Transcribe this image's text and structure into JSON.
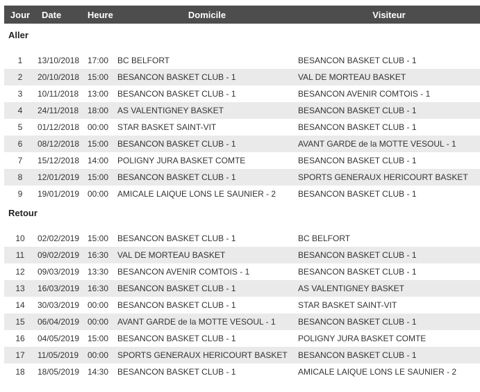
{
  "columns": {
    "jour": "Jour",
    "date": "Date",
    "heure": "Heure",
    "domicile": "Domicile",
    "visiteur": "Visiteur"
  },
  "colors": {
    "header_bg": "#4d4d4d",
    "row_alt_bg": "#eaeaea"
  },
  "sections": [
    {
      "title": "Aller",
      "rows": [
        {
          "jour": "1",
          "date": "13/10/2018",
          "heure": "17:00",
          "domicile": "BC BELFORT",
          "visiteur": "BESANCON BASKET CLUB - 1"
        },
        {
          "jour": "2",
          "date": "20/10/2018",
          "heure": "15:00",
          "domicile": "BESANCON BASKET CLUB - 1",
          "visiteur": "VAL DE MORTEAU BASKET"
        },
        {
          "jour": "3",
          "date": "10/11/2018",
          "heure": "13:00",
          "domicile": "BESANCON BASKET CLUB - 1",
          "visiteur": "BESANCON AVENIR COMTOIS - 1"
        },
        {
          "jour": "4",
          "date": "24/11/2018",
          "heure": "18:00",
          "domicile": "AS VALENTIGNEY BASKET",
          "visiteur": "BESANCON BASKET CLUB - 1"
        },
        {
          "jour": "5",
          "date": "01/12/2018",
          "heure": "00:00",
          "domicile": "STAR BASKET SAINT-VIT",
          "visiteur": "BESANCON BASKET CLUB - 1"
        },
        {
          "jour": "6",
          "date": "08/12/2018",
          "heure": "15:00",
          "domicile": "BESANCON BASKET CLUB - 1",
          "visiteur": "AVANT GARDE de la MOTTE VESOUL - 1"
        },
        {
          "jour": "7",
          "date": "15/12/2018",
          "heure": "14:00",
          "domicile": "POLIGNY JURA BASKET COMTE",
          "visiteur": "BESANCON BASKET CLUB - 1"
        },
        {
          "jour": "8",
          "date": "12/01/2019",
          "heure": "15:00",
          "domicile": "BESANCON BASKET CLUB - 1",
          "visiteur": "SPORTS GENERAUX HERICOURT BASKET"
        },
        {
          "jour": "9",
          "date": "19/01/2019",
          "heure": "00:00",
          "domicile": "AMICALE LAIQUE LONS LE SAUNIER - 2",
          "visiteur": "BESANCON BASKET CLUB - 1"
        }
      ]
    },
    {
      "title": "Retour",
      "rows": [
        {
          "jour": "10",
          "date": "02/02/2019",
          "heure": "15:00",
          "domicile": "BESANCON BASKET CLUB - 1",
          "visiteur": "BC BELFORT"
        },
        {
          "jour": "11",
          "date": "09/02/2019",
          "heure": "16:30",
          "domicile": "VAL DE MORTEAU BASKET",
          "visiteur": "BESANCON BASKET CLUB - 1"
        },
        {
          "jour": "12",
          "date": "09/03/2019",
          "heure": "13:30",
          "domicile": "BESANCON AVENIR COMTOIS - 1",
          "visiteur": "BESANCON BASKET CLUB - 1"
        },
        {
          "jour": "13",
          "date": "16/03/2019",
          "heure": "16:30",
          "domicile": "BESANCON BASKET CLUB - 1",
          "visiteur": "AS VALENTIGNEY BASKET"
        },
        {
          "jour": "14",
          "date": "30/03/2019",
          "heure": "00:00",
          "domicile": "BESANCON BASKET CLUB - 1",
          "visiteur": "STAR BASKET SAINT-VIT"
        },
        {
          "jour": "15",
          "date": "06/04/2019",
          "heure": "00:00",
          "domicile": "AVANT GARDE de la MOTTE VESOUL - 1",
          "visiteur": "BESANCON BASKET CLUB - 1"
        },
        {
          "jour": "16",
          "date": "04/05/2019",
          "heure": "15:00",
          "domicile": "BESANCON BASKET CLUB - 1",
          "visiteur": "POLIGNY JURA BASKET COMTE"
        },
        {
          "jour": "17",
          "date": "11/05/2019",
          "heure": "00:00",
          "domicile": "SPORTS GENERAUX HERICOURT BASKET",
          "visiteur": "BESANCON BASKET CLUB - 1"
        },
        {
          "jour": "18",
          "date": "18/05/2019",
          "heure": "14:30",
          "domicile": "BESANCON BASKET CLUB - 1",
          "visiteur": "AMICALE LAIQUE LONS LE SAUNIER - 2"
        }
      ]
    }
  ]
}
